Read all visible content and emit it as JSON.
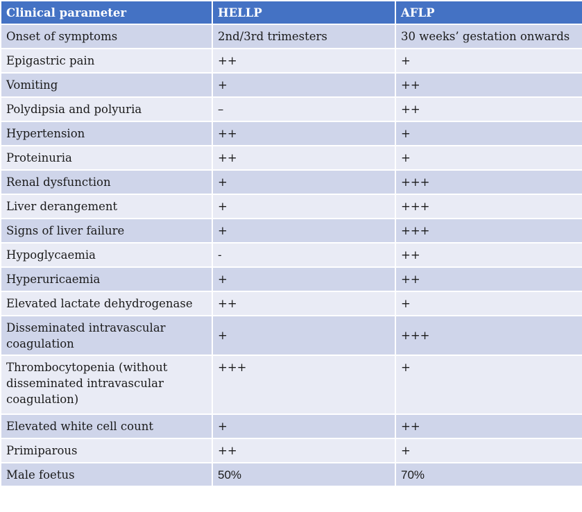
{
  "headers": [
    "Clinical parameter",
    "HELLP",
    "AFLP"
  ],
  "rows": [
    [
      "Onset of symptoms",
      "2nd/3rd trimesters",
      "30 weeks’ gestation onwards"
    ],
    [
      "Epigastric pain",
      "++",
      "+"
    ],
    [
      "Vomiting",
      "+",
      "++"
    ],
    [
      "Polydipsia and polyuria",
      "–",
      "++"
    ],
    [
      "Hypertension",
      "++",
      "+"
    ],
    [
      "Proteinuria",
      "++",
      "+"
    ],
    [
      "Renal dysfunction",
      "+",
      "+++"
    ],
    [
      "Liver derangement",
      "+",
      "+++"
    ],
    [
      "Signs of liver failure",
      "+",
      "+++"
    ],
    [
      "Hypoglycaemia",
      "-",
      "++"
    ],
    [
      "Hyperuricaemia",
      "+",
      "++"
    ],
    [
      "Elevated lactate dehydrogenase",
      "++",
      "+"
    ],
    [
      "Disseminated intravascular coagulation",
      "+",
      "+++"
    ],
    [
      "Thrombocytopenia (without disseminated intravascular coagulation)",
      "+++",
      "+"
    ],
    [
      "Elevated white cell count",
      "+",
      "++"
    ],
    [
      "Primiparous",
      "++",
      "+"
    ],
    [
      "Male foetus",
      "50%",
      "70%"
    ]
  ]
}
